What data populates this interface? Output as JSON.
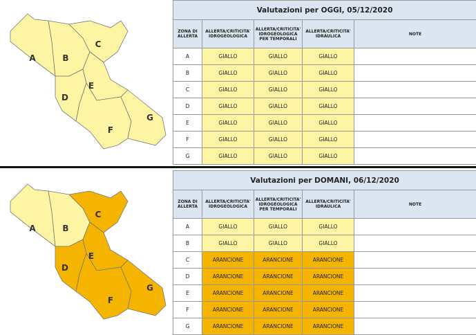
{
  "sections": [
    {
      "title": "Valutazioni per OGGI, 05/12/2020",
      "headers": [
        "ZONA DI ALLERTA",
        "ALLERTA/CRITICITA' IDROGEOLOGICA",
        "ALLERTA/CRITICITA' IDROGEOLOGICA PER TEMPORALI",
        "ALLERTA/CRITICITA' IDRAULICA",
        "NOTE"
      ],
      "rows": [
        [
          "A",
          "GIALLO",
          "GIALLO",
          "GIALLO"
        ],
        [
          "B",
          "GIALLO",
          "GIALLO",
          "GIALLO"
        ],
        [
          "C",
          "GIALLO",
          "GIALLO",
          "GIALLO"
        ],
        [
          "D",
          "GIALLO",
          "GIALLO",
          "GIALLO"
        ],
        [
          "E",
          "GIALLO",
          "GIALLO",
          "GIALLO"
        ],
        [
          "F",
          "GIALLO",
          "GIALLO",
          "GIALLO"
        ],
        [
          "G",
          "GIALLO",
          "GIALLO",
          "GIALLO"
        ]
      ]
    },
    {
      "title": "Valutazioni per DOMANI, 06/12/2020",
      "headers": [
        "ZONA DI ALLERTA",
        "ALLERTA/CRITICITA' IDROGEOLOGICA",
        "ALLERTA/CRITICITA' IDROGEOLOGICA PER TEMPORALI",
        "ALLERTA/CRITICITA' IDRAULICA",
        "NOTE"
      ],
      "rows": [
        [
          "A",
          "GIALLO",
          "GIALLO",
          "GIALLO"
        ],
        [
          "B",
          "GIALLO",
          "GIALLO",
          "GIALLO"
        ],
        [
          "C",
          "ARANCIONE",
          "ARANCIONE",
          "ARANCIONE"
        ],
        [
          "D",
          "ARANCIONE",
          "ARANCIONE",
          "ARANCIONE"
        ],
        [
          "E",
          "ARANCIONE",
          "ARANCIONE",
          "ARANCIONE"
        ],
        [
          "F",
          "ARANCIONE",
          "ARANCIONE",
          "ARANCIONE"
        ],
        [
          "G",
          "ARANCIONE",
          "ARANCIONE",
          "ARANCIONE"
        ]
      ]
    }
  ],
  "level_colors": {
    "GIALLO": "#fdf5a3",
    "ARANCIONE": "#f5b400"
  }
}
